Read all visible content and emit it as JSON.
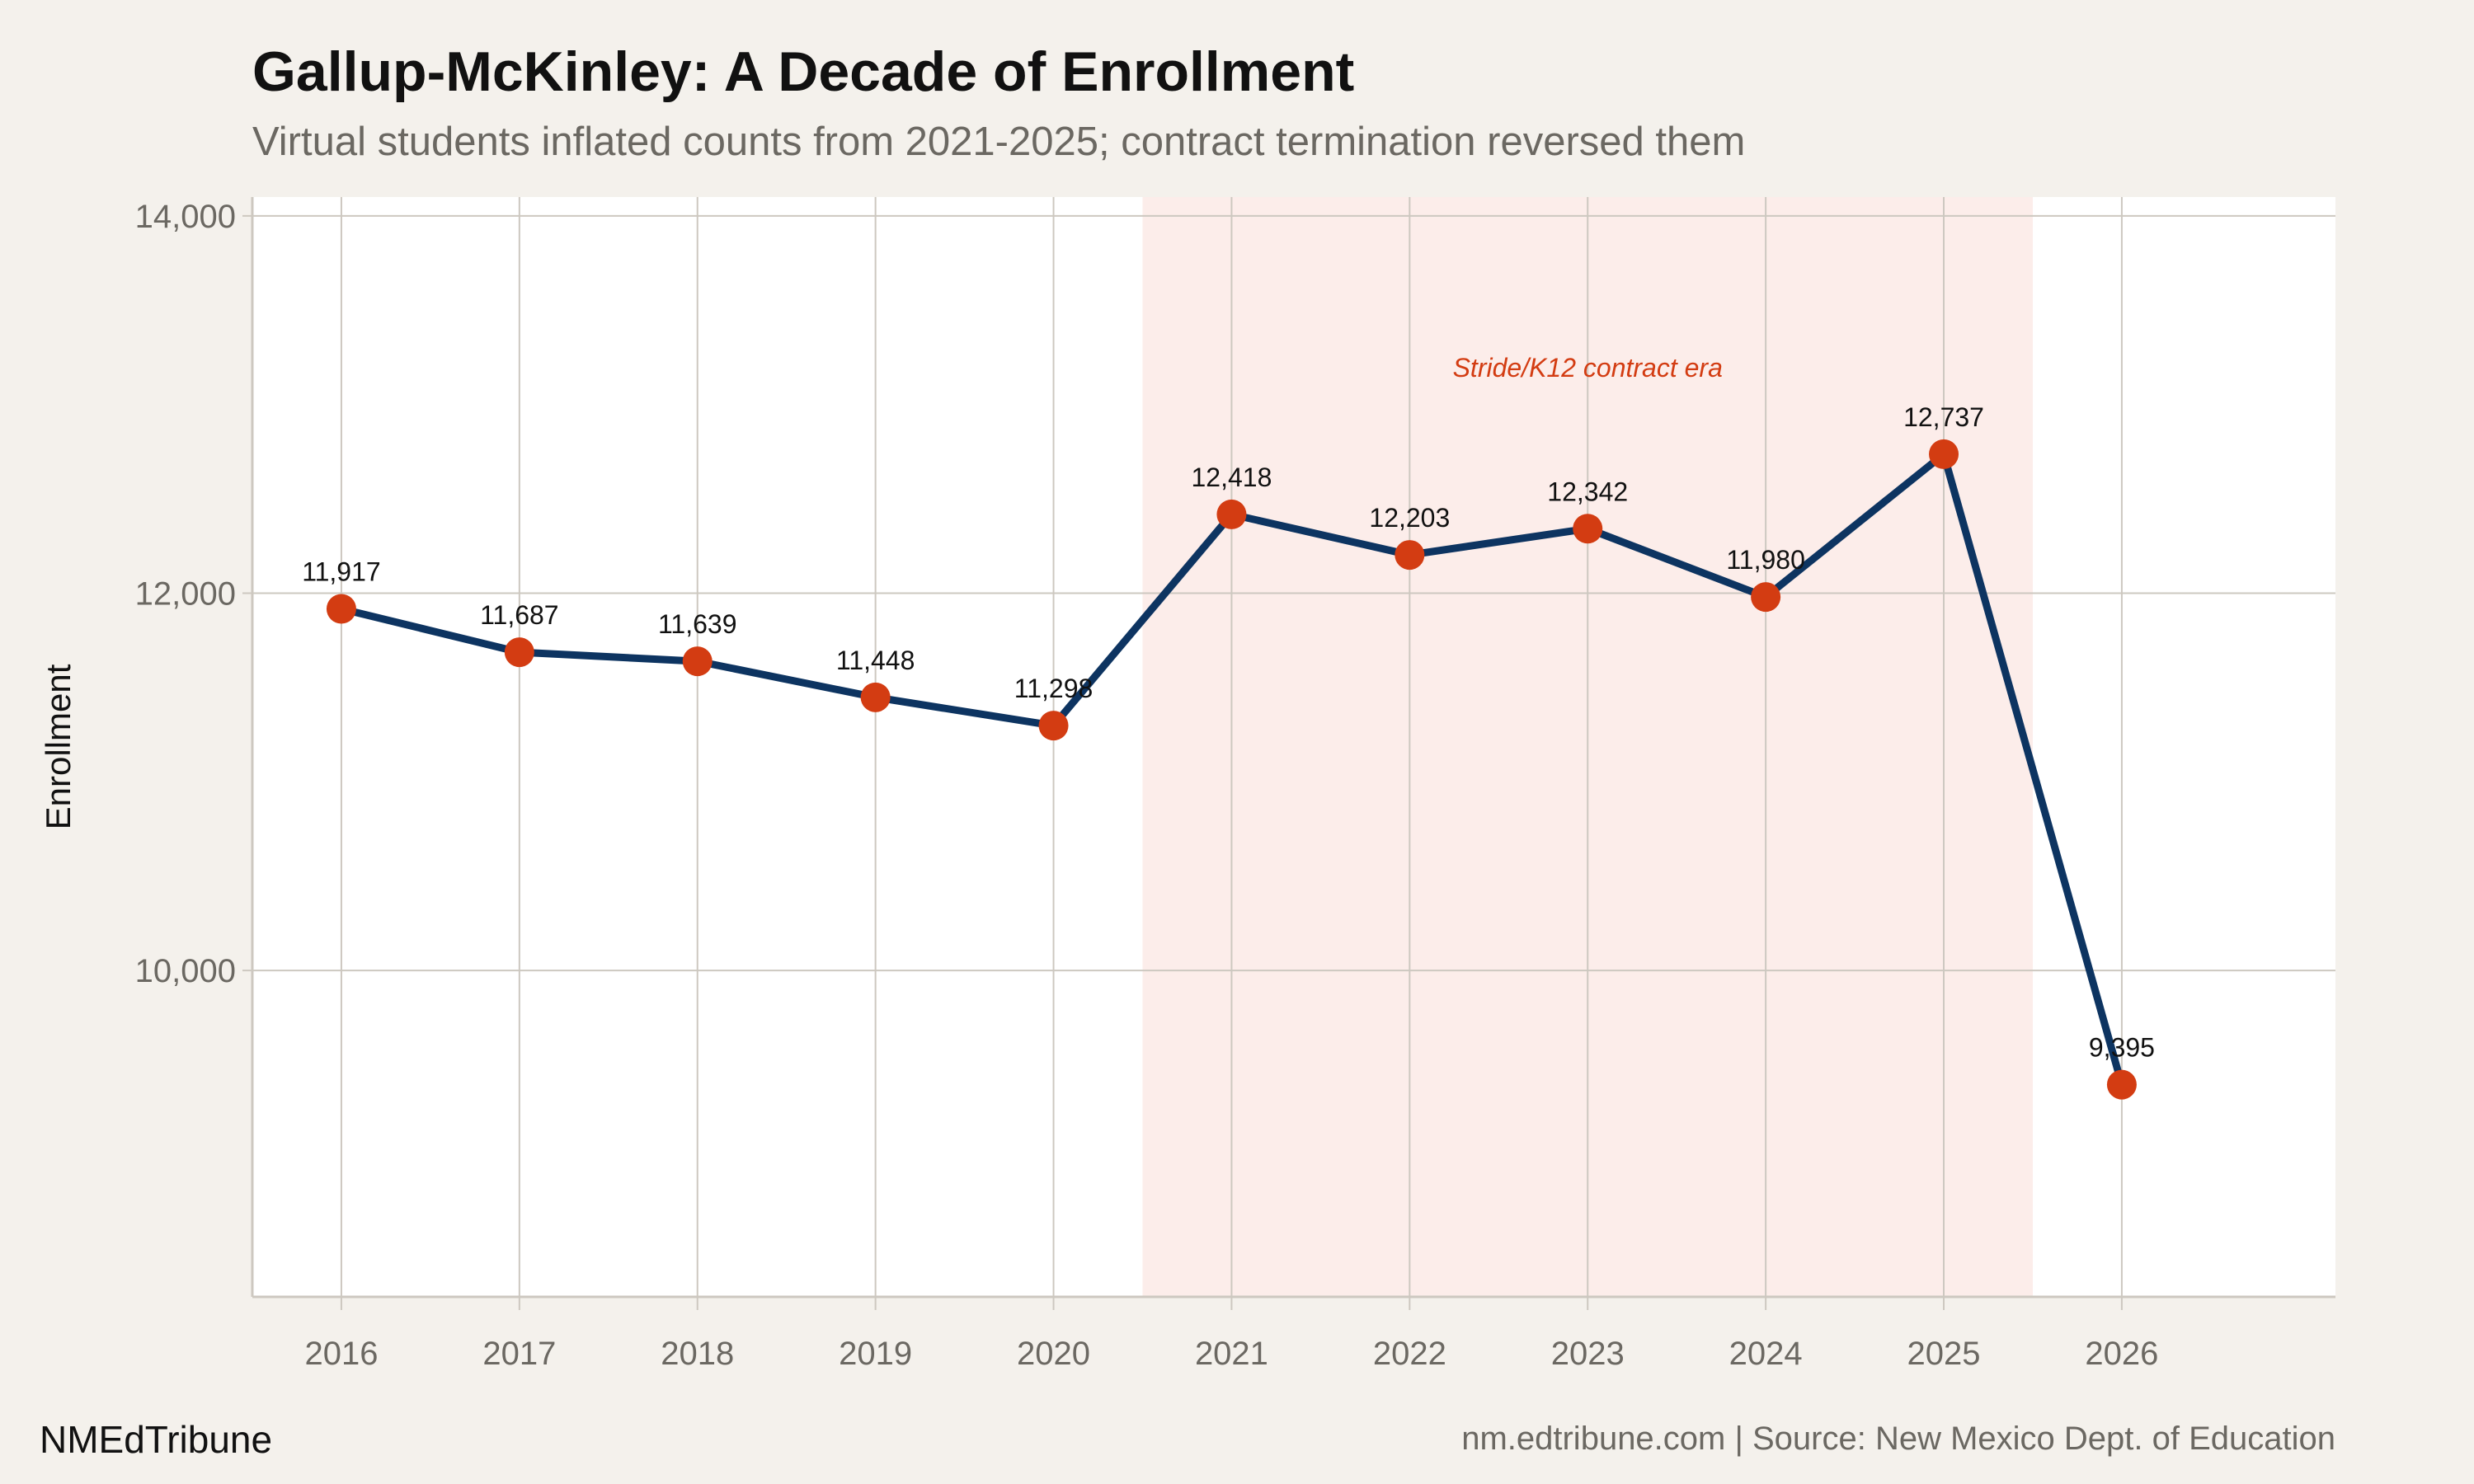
{
  "title": "Gallup-McKinley: A Decade of Enrollment",
  "subtitle": "Virtual students inflated counts from 2021-2025; contract termination reversed them",
  "brand": "NMEdTribune",
  "source": "nm.edtribune.com | Source: New Mexico Dept. of Education",
  "colors": {
    "background": "#f4f1ec",
    "panel": "#ffffff",
    "line": "#0d3461",
    "point": "#d33c12",
    "shade": "#fcedea",
    "grid": "#cdc8c0",
    "annotation": "#d33c12"
  },
  "chart_data": {
    "type": "line",
    "title": "Gallup-McKinley: A Decade of Enrollment",
    "xlabel": "",
    "ylabel": "Enrollment",
    "x": [
      2016,
      2017,
      2018,
      2019,
      2020,
      2021,
      2022,
      2023,
      2024,
      2025,
      2026
    ],
    "values": [
      11917,
      11687,
      11639,
      11448,
      11298,
      12418,
      12203,
      12342,
      11980,
      12737,
      9395
    ],
    "data_labels": [
      "11,917",
      "11,687",
      "11,639",
      "11,448",
      "11,298",
      "12,418",
      "12,203",
      "12,342",
      "11,980",
      "12,737",
      "9,395"
    ],
    "x_tick_labels": [
      "2016",
      "2017",
      "2018",
      "2019",
      "2020",
      "2021",
      "2022",
      "2023",
      "2024",
      "2025",
      "2026"
    ],
    "y_ticks": [
      10000,
      12000,
      14000
    ],
    "y_tick_labels": [
      "10,000",
      "12,000",
      "14,000"
    ],
    "xlim": [
      2015.5,
      2027.2
    ],
    "ylim": [
      8270,
      14100
    ],
    "grid": true,
    "shaded_region": {
      "x_start": 2020.5,
      "x_end": 2025.5,
      "label": "Stride/K12 contract era",
      "label_x": 2023,
      "label_y": 13200
    }
  }
}
